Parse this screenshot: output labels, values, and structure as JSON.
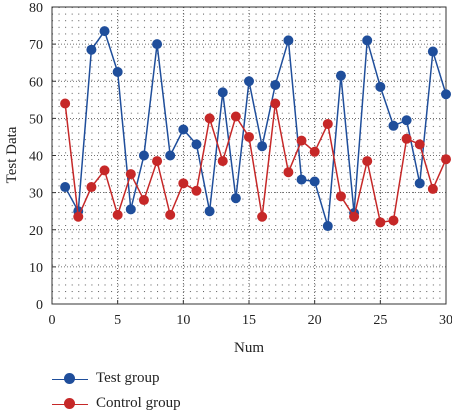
{
  "chart_data": {
    "type": "line",
    "title": "",
    "xlabel": "Num",
    "ylabel": "Test Data",
    "xlim": [
      0,
      30
    ],
    "ylim": [
      0,
      80
    ],
    "xticks": [
      0,
      5,
      10,
      15,
      20,
      25,
      30
    ],
    "yticks": [
      0,
      10,
      20,
      30,
      40,
      50,
      60,
      70,
      80
    ],
    "grid": "dotted",
    "legend_position": "bottom-left",
    "x": [
      1,
      2,
      3,
      4,
      5,
      6,
      7,
      8,
      9,
      10,
      11,
      12,
      13,
      14,
      15,
      16,
      17,
      18,
      19,
      20,
      21,
      22,
      23,
      24,
      25,
      26,
      27,
      28,
      29,
      30
    ],
    "series": [
      {
        "name": "Test group",
        "color": "#1f4e9b",
        "values": [
          31.5,
          25,
          68.5,
          73.5,
          62.5,
          25.5,
          40,
          70,
          40,
          47,
          43,
          25,
          57,
          28.5,
          60,
          42.5,
          59,
          71,
          33.5,
          33,
          21,
          61.5,
          24.5,
          71,
          58.5,
          48,
          49.5,
          32.5,
          68,
          56.5
        ]
      },
      {
        "name": "Control group",
        "color": "#c62828",
        "values": [
          54,
          23.5,
          31.5,
          36,
          24,
          35,
          28,
          38.5,
          24,
          32.5,
          30.5,
          50,
          38.5,
          50.5,
          45,
          23.5,
          54,
          35.5,
          44,
          41,
          48.5,
          29,
          23.5,
          38.5,
          22,
          22.5,
          44.5,
          43,
          31,
          39
        ]
      }
    ]
  }
}
